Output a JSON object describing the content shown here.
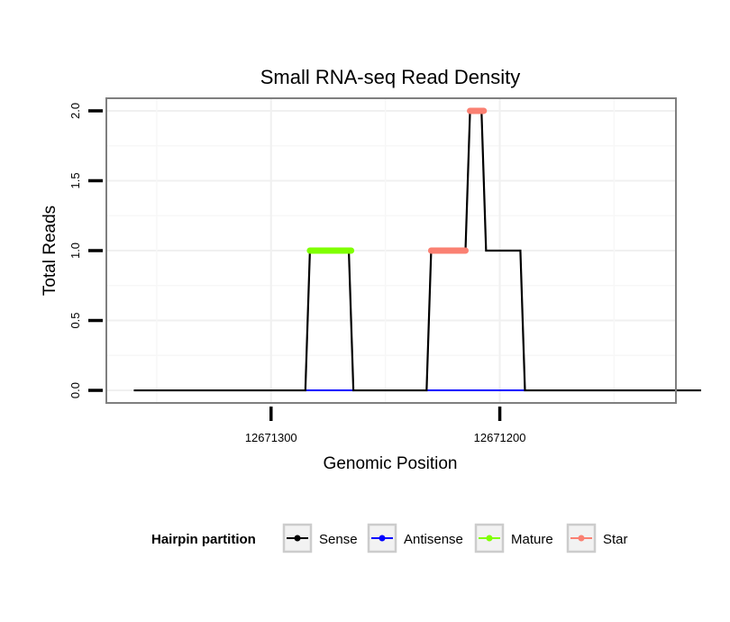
{
  "chart_data": {
    "type": "line",
    "title": "Small RNA-seq Read Density",
    "xlabel": "Genomic Position",
    "ylabel": "Total Reads",
    "xlim": [
      12671372,
      12671123
    ],
    "ylim": [
      -0.09,
      2.09
    ],
    "x_reversed": true,
    "x_ticks": [
      {
        "value": 12671300,
        "label": "12671300"
      },
      {
        "value": 12671200,
        "label": "12671200"
      }
    ],
    "y_ticks": [
      {
        "value": 0.0,
        "label": "0.0"
      },
      {
        "value": 0.5,
        "label": "0.5"
      },
      {
        "value": 1.0,
        "label": "1.0"
      },
      {
        "value": 1.5,
        "label": "1.5"
      },
      {
        "value": 2.0,
        "label": "2.0"
      }
    ],
    "grid": true,
    "series": [
      {
        "name": "Sense",
        "color": "#000000",
        "x": [
          12671360,
          12671285,
          12671283,
          12671266,
          12671264,
          12671232,
          12671230,
          12671215,
          12671213,
          12671208,
          12671206,
          12671191,
          12671189,
          12671112
        ],
        "y": [
          0,
          0,
          1,
          1,
          0,
          0,
          1,
          1,
          2,
          2,
          1,
          1,
          0,
          0
        ]
      },
      {
        "name": "Antisense",
        "color": "#0000ff",
        "x": [
          12671285,
          12671264,
          12671232,
          12671189
        ],
        "y": [
          0,
          0,
          0,
          0
        ],
        "segments": [
          [
            0,
            1
          ],
          [
            2,
            3
          ]
        ]
      },
      {
        "name": "Mature",
        "color": "#7fff00",
        "x": [
          12671283,
          12671265
        ],
        "y": [
          1,
          1
        ]
      },
      {
        "name": "Star",
        "color": "#fa8072",
        "x": [
          12671230,
          12671215,
          12671213,
          12671207
        ],
        "y": [
          1,
          1,
          2,
          2
        ],
        "segments": [
          [
            0,
            1
          ],
          [
            2,
            3
          ]
        ]
      }
    ],
    "legend": {
      "title": "Hairpin partition",
      "position": "bottom",
      "entries": [
        {
          "label": "Sense",
          "color": "#000000"
        },
        {
          "label": "Antisense",
          "color": "#0000ff"
        },
        {
          "label": "Mature",
          "color": "#7fff00"
        },
        {
          "label": "Star",
          "color": "#fa8072"
        }
      ]
    }
  }
}
